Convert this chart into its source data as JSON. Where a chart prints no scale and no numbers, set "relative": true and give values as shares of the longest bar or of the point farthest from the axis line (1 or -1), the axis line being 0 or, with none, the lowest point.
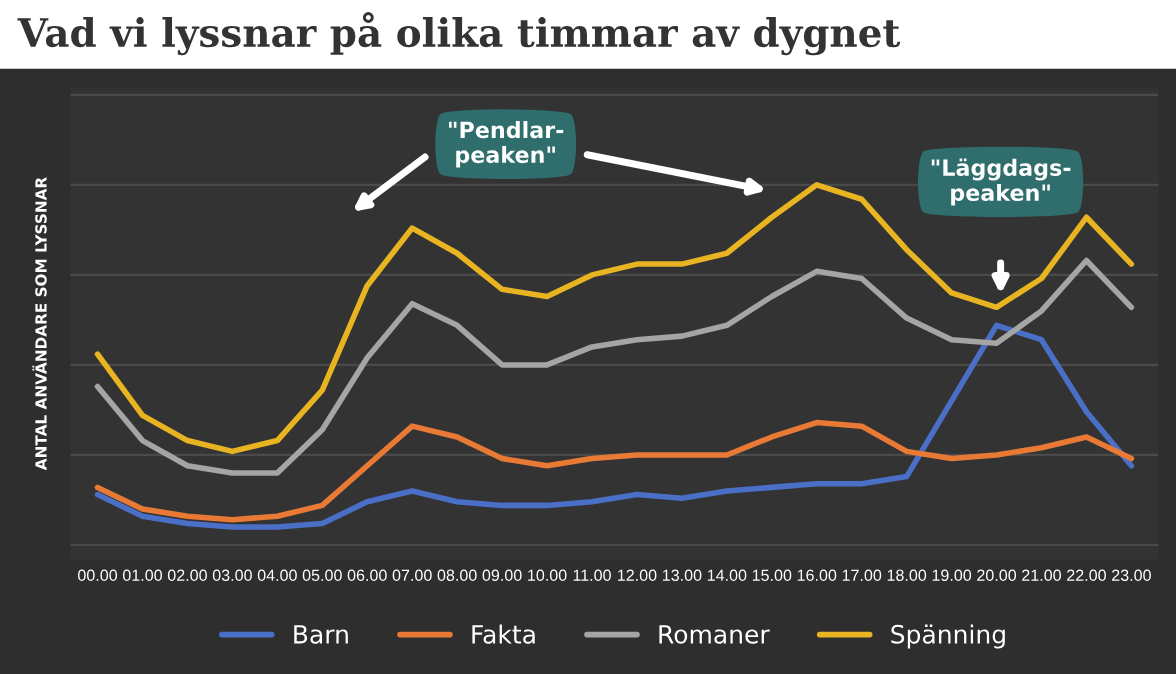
{
  "chart_data": {
    "type": "line",
    "title": "Vad vi lyssnar på olika timmar av dygnet",
    "ylabel": "ANTAL ANVÄNDARE SOM LYSSNAR",
    "relative": true,
    "grid": "y",
    "legend": "bottom",
    "marker": "none",
    "line_style": "solid",
    "categories": [
      "00.00",
      "01.00",
      "02.00",
      "03.00",
      "04.00",
      "05.00",
      "06.00",
      "07.00",
      "08.00",
      "09.00",
      "10.00",
      "11.00",
      "12.00",
      "13.00",
      "14.00",
      "15.00",
      "16.00",
      "17.00",
      "18.00",
      "19.00",
      "20.00",
      "21.00",
      "22.00",
      "23.00"
    ],
    "series": [
      {
        "name": "Barn",
        "color": "#4a6fc7",
        "values": [
          0.14,
          0.08,
          0.06,
          0.05,
          0.05,
          0.06,
          0.12,
          0.15,
          0.12,
          0.11,
          0.11,
          0.12,
          0.14,
          0.13,
          0.15,
          0.16,
          0.17,
          0.17,
          0.19,
          0.4,
          0.61,
          0.57,
          0.37,
          0.22
        ]
      },
      {
        "name": "Fakta",
        "color": "#e87a36",
        "values": [
          0.16,
          0.1,
          0.08,
          0.07,
          0.08,
          0.11,
          0.22,
          0.33,
          0.3,
          0.24,
          0.22,
          0.24,
          0.25,
          0.25,
          0.25,
          0.3,
          0.34,
          0.33,
          0.26,
          0.24,
          0.25,
          0.27,
          0.3,
          0.24
        ]
      },
      {
        "name": "Romaner",
        "color": "#a5a5a5",
        "values": [
          0.44,
          0.29,
          0.22,
          0.2,
          0.2,
          0.32,
          0.52,
          0.67,
          0.61,
          0.5,
          0.5,
          0.55,
          0.57,
          0.58,
          0.61,
          0.69,
          0.76,
          0.74,
          0.63,
          0.57,
          0.56,
          0.65,
          0.79,
          0.66
        ]
      },
      {
        "name": "Spänning",
        "color": "#e8b422",
        "values": [
          0.53,
          0.36,
          0.29,
          0.26,
          0.29,
          0.43,
          0.72,
          0.88,
          0.81,
          0.71,
          0.69,
          0.75,
          0.78,
          0.78,
          0.81,
          0.91,
          1.0,
          0.96,
          0.82,
          0.7,
          0.66,
          0.74,
          0.91,
          0.78
        ]
      }
    ],
    "annotations": [
      "\"Pendlar-\npeaken\"",
      "\"Läggdags-\npeaken\""
    ]
  }
}
